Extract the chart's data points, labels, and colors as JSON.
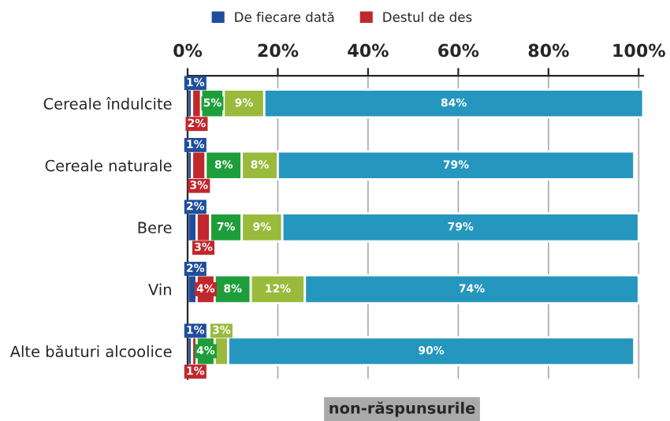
{
  "chart_data": {
    "type": "bar",
    "orientation": "horizontal",
    "stacked": true,
    "categories": [
      "Cereale îndulcite",
      "Cereale naturale",
      "Bere",
      "Vin",
      "Alte băuturi alcoolice"
    ],
    "series": [
      {
        "name": "De fiecare dată",
        "color": "#1f4e9c",
        "values": [
          1,
          1,
          2,
          2,
          1
        ],
        "value_labels": [
          "1%",
          "1%",
          "2%",
          "2%",
          "1%"
        ]
      },
      {
        "name": "Destul de des",
        "color": "#c0282d",
        "values": [
          2,
          3,
          3,
          4,
          1
        ],
        "value_labels": [
          "2%",
          "3%",
          "3%",
          "4%",
          "1%"
        ]
      },
      {
        "color": "#1e9e3a",
        "values": [
          5,
          8,
          7,
          8,
          4
        ],
        "value_labels": [
          "5%",
          "8%",
          "7%",
          "8%",
          "4%"
        ]
      },
      {
        "color": "#9aba3c",
        "values": [
          9,
          8,
          9,
          12,
          3
        ],
        "value_labels": [
          "9%",
          "8%",
          "9%",
          "12%",
          "3%"
        ]
      },
      {
        "color": "#2596be",
        "values": [
          84,
          79,
          79,
          74,
          90
        ],
        "value_labels": [
          "84%",
          "79%",
          "79%",
          "74%",
          "90%"
        ]
      }
    ],
    "xlim": [
      0,
      101
    ],
    "xticks": [
      {
        "value": 0,
        "label": "0%"
      },
      {
        "value": 20,
        "label": "20%"
      },
      {
        "value": 40,
        "label": "40%"
      },
      {
        "value": 60,
        "label": "60%"
      },
      {
        "value": 80,
        "label": "80%"
      },
      {
        "value": 100,
        "label": "100%"
      }
    ],
    "grid": "x",
    "legend": "top left",
    "annotations": [
      "non-răspunsurile"
    ]
  }
}
